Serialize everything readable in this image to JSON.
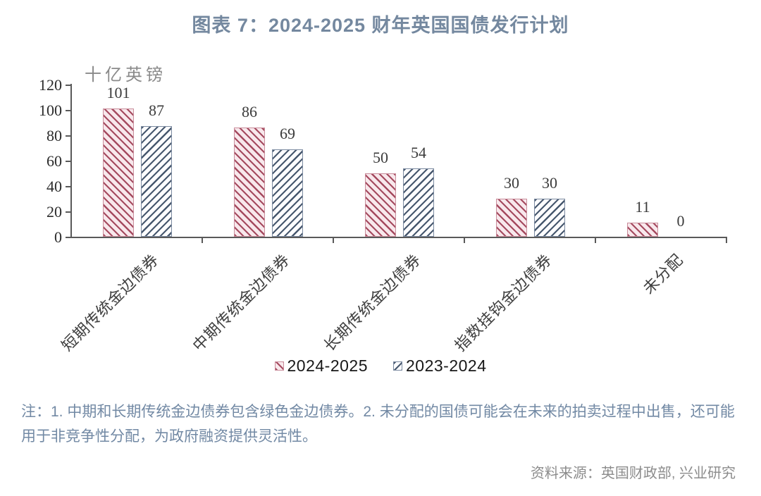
{
  "title": "图表 7：2024-2025 财年英国国债发行计划",
  "chart_data": {
    "type": "bar",
    "title": "图表 7：2024-2025 财年英国国债发行计划",
    "unit_label": "十亿英镑",
    "categories": [
      "短期传统金边债券",
      "中期传统金边债券",
      "长期传统金边债券",
      "指数挂钩金边债券",
      "未分配"
    ],
    "series": [
      {
        "name": "2024-2025",
        "values": [
          101,
          86,
          50,
          30,
          11
        ],
        "hatch_direction": "\\",
        "stripe_color": "#a54a5f",
        "fill_color": "#f8e8ec",
        "border_color": "#c98d9b"
      },
      {
        "name": "2023-2024",
        "values": [
          87,
          69,
          54,
          30,
          0
        ],
        "hatch_direction": "/",
        "stripe_color": "#47586e",
        "fill_color": "#fdfdff",
        "border_color": "#7b8aa0"
      }
    ],
    "ylim": [
      0,
      120
    ],
    "yticks": [
      0,
      20,
      40,
      60,
      80,
      100,
      120
    ],
    "grid": false,
    "legend_position": "bottom-center"
  },
  "note": "注：1. 中期和长期传统金边债券包含绿色金边债券。2. 未分配的国债可能会在未来的拍卖过程中出售，还可能用于非竞争性分配，为政府融资提供灵活性。",
  "source": "资料来源：英国财政部, 兴业研究",
  "colors": {
    "title": "#74889f",
    "note": "#7289a4",
    "source": "#8c8c8c",
    "axis": "#595959",
    "value_labels": "#3b3b3b"
  }
}
